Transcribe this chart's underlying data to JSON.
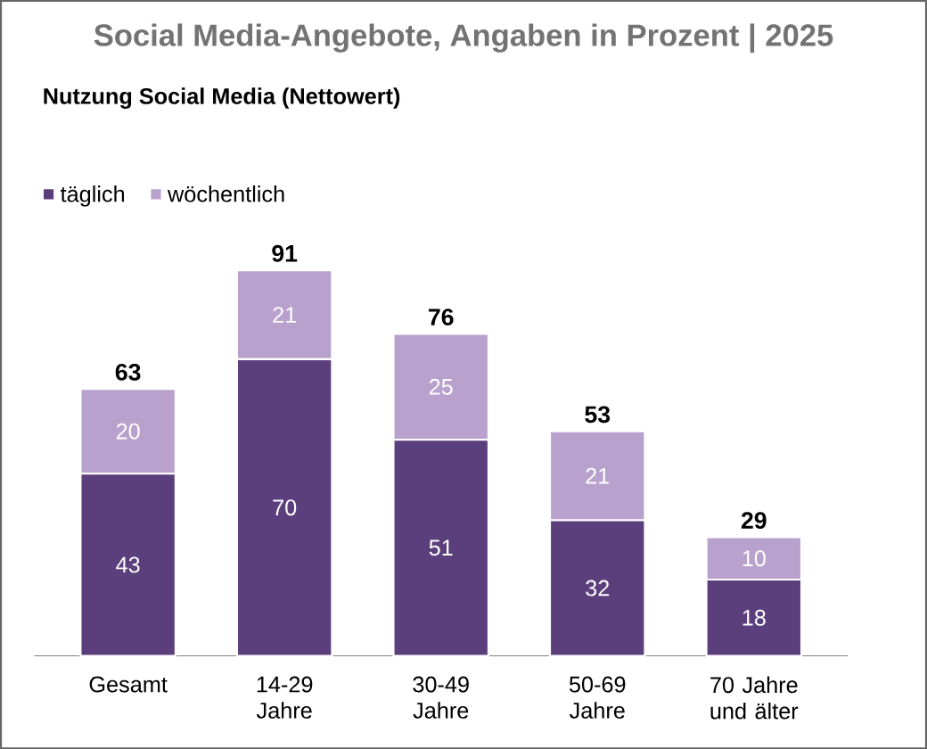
{
  "chart_data": {
    "type": "bar",
    "title": "Social Media-Angebote, Angaben in Prozent | 2025",
    "subtitle": "Nutzung Social Media (Nettowert)",
    "categories": [
      "Gesamt",
      "14-29 Jahre",
      "30-49 Jahre",
      "50-69 Jahre",
      "70 Jahre und älter"
    ],
    "stacked": true,
    "data_labels": true,
    "legend": "top left",
    "totals": [
      "63",
      "91",
      "76",
      "53",
      "29"
    ],
    "series": [
      {
        "name": "täglich",
        "color": "#5b3f7c",
        "values": [
          43,
          70,
          51,
          32,
          18
        ]
      },
      {
        "name": "wöchentlich",
        "color": "#b9a1cd",
        "values": [
          20,
          21,
          25,
          21,
          10
        ]
      }
    ]
  }
}
